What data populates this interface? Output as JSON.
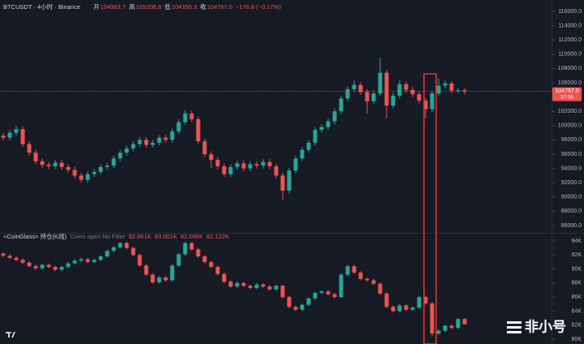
{
  "watermark": "非小号",
  "chart_data": [
    {
      "type": "candlestick",
      "title": "BTCUSDT · 4小时 · Binance",
      "stats": [
        {
          "label": "开",
          "value": "104963.7"
        },
        {
          "label": "高",
          "value": "105208.8"
        },
        {
          "label": "低",
          "value": "104356.3"
        },
        {
          "label": "收",
          "value": "104787.0"
        }
      ],
      "change": "−176.8 (−0.17%)",
      "open": [
        98600,
        98300,
        99000,
        99500,
        97400,
        96200,
        95000,
        94500,
        94300,
        94800,
        94200,
        93800,
        93000,
        92400,
        93200,
        93500,
        94200,
        94400,
        95400,
        96200,
        96800,
        97400,
        98000,
        97300,
        97600,
        98300,
        98000,
        99200,
        100500,
        101700,
        100900,
        97800,
        96000,
        95200,
        94300,
        93200,
        94200,
        94700,
        94000,
        94600,
        94400,
        94900,
        94300,
        93000,
        90900,
        93700,
        95400,
        96600,
        97600,
        99400,
        99800,
        100600,
        102000,
        103800,
        105100,
        105700,
        104700,
        103400,
        104500,
        107400,
        102800,
        104200,
        105800,
        105000,
        104400,
        103500,
        102300,
        104500,
        105600,
        105900,
        104900,
        104963.7
      ],
      "high": [
        99000,
        99400,
        100000,
        99900,
        97800,
        96600,
        95400,
        94900,
        95200,
        95200,
        94600,
        94200,
        93400,
        93600,
        93900,
        94600,
        94800,
        95800,
        96600,
        97200,
        97800,
        98400,
        98400,
        98000,
        98700,
        98700,
        99600,
        100900,
        102200,
        102100,
        101300,
        98200,
        96400,
        95600,
        94700,
        94600,
        95100,
        95100,
        95000,
        95000,
        95300,
        95300,
        94700,
        93400,
        94100,
        95800,
        97000,
        98000,
        99800,
        100200,
        101000,
        102400,
        104200,
        105500,
        106300,
        106100,
        105100,
        105000,
        109500,
        107800,
        104600,
        106400,
        106200,
        105400,
        104800,
        103900,
        104900,
        106600,
        106300,
        106200,
        105300,
        105208.8
      ],
      "low": [
        97900,
        97900,
        98600,
        97000,
        95800,
        94600,
        94100,
        93900,
        93900,
        93800,
        93400,
        92600,
        92000,
        92000,
        92800,
        93100,
        93800,
        94000,
        95000,
        95800,
        96400,
        97000,
        96900,
        96900,
        97200,
        97600,
        97600,
        98800,
        100100,
        100500,
        97400,
        95600,
        94000,
        93900,
        92800,
        92800,
        93800,
        93600,
        93600,
        94000,
        94000,
        93900,
        92600,
        89600,
        90500,
        93300,
        95000,
        96200,
        97200,
        99000,
        99400,
        100200,
        101600,
        103400,
        104700,
        104300,
        101700,
        103000,
        104100,
        101000,
        102400,
        103800,
        104600,
        104000,
        103100,
        101000,
        101900,
        104100,
        105200,
        104500,
        104500,
        104356.3
      ],
      "close": [
        98300,
        99000,
        99500,
        97400,
        96200,
        95000,
        94500,
        94300,
        94800,
        94200,
        93800,
        93000,
        92400,
        93200,
        93500,
        94200,
        94400,
        95400,
        96200,
        96800,
        97400,
        98000,
        97300,
        97600,
        98300,
        98000,
        99200,
        100500,
        101700,
        100900,
        97800,
        96000,
        95200,
        94300,
        93200,
        94200,
        94700,
        94000,
        94600,
        94400,
        94900,
        94300,
        93000,
        90900,
        93700,
        95400,
        96600,
        97600,
        99400,
        99800,
        100600,
        102000,
        103800,
        105100,
        105700,
        104700,
        103400,
        104500,
        107400,
        102800,
        104200,
        105800,
        105000,
        104400,
        103500,
        102300,
        104500,
        105600,
        105900,
        104900,
        104963.7,
        104787
      ],
      "ylim": [
        85000,
        117000
      ],
      "yticks": [
        {
          "value": 86000,
          "label": "86000.0"
        },
        {
          "value": 88000,
          "label": "88000.0"
        },
        {
          "value": 90000,
          "label": "90000.0"
        },
        {
          "value": 92000,
          "label": "92000.0"
        },
        {
          "value": 94000,
          "label": "94000.0"
        },
        {
          "value": 96000,
          "label": "96000.0"
        },
        {
          "value": 98000,
          "label": "98000.0"
        },
        {
          "value": 100000,
          "label": "100000.0"
        },
        {
          "value": 102000,
          "label": "102000.0"
        },
        {
          "value": 104000,
          "label": "104000.0"
        },
        {
          "value": 106000,
          "label": "106000.0"
        },
        {
          "value": 108000,
          "label": "108000.0"
        },
        {
          "value": 110000,
          "label": "110000.0"
        },
        {
          "value": 112000,
          "label": "112000.0"
        },
        {
          "value": 114000,
          "label": "114000.0"
        },
        {
          "value": 116000,
          "label": "116000.0"
        }
      ],
      "last_price": {
        "value": 104787,
        "label": "104787.0"
      },
      "countdown": "37:55",
      "up_color": "#26a69a",
      "down_color": "#ef5350"
    },
    {
      "type": "candlestick",
      "title": "<CoinGlass> 持仓(K线)",
      "subtitle": "Coins open No Filter",
      "stats": [
        "82.861K",
        "83.001K",
        "82.086K",
        "82.122K"
      ],
      "open": [
        92.2,
        91.9,
        91.6,
        91.3,
        90.9,
        90.4,
        90.1,
        90.6,
        90.3,
        89.9,
        90.3,
        90.8,
        91.2,
        91.4,
        91.0,
        91.3,
        91.8,
        92.6,
        93.1,
        93.7,
        93.0,
        92.0,
        90.5,
        89.2,
        88.1,
        88.8,
        88.4,
        90.5,
        92.1,
        93.7,
        92.8,
        91.8,
        91.0,
        90.3,
        89.3,
        88.2,
        87.5,
        88.0,
        87.6,
        87.3,
        87.8,
        87.5,
        87.1,
        87.6,
        86.0,
        84.6,
        84.2,
        84.9,
        85.8,
        86.6,
        86.8,
        86.4,
        86.0,
        89.2,
        90.4,
        89.5,
        88.6,
        88.4,
        87.9,
        86.5,
        84.6,
        84.0,
        84.8,
        84.2,
        84.5,
        86.0,
        85.1,
        80.8,
        81.2,
        81.9,
        81.6,
        82.861
      ],
      "high": [
        92.4,
        92.1,
        91.8,
        91.5,
        91.1,
        90.6,
        90.8,
        90.8,
        90.5,
        90.5,
        91.0,
        91.4,
        91.6,
        91.6,
        91.5,
        92.0,
        92.8,
        93.3,
        93.9,
        93.9,
        93.2,
        92.2,
        90.7,
        89.4,
        89.0,
        89.0,
        90.7,
        92.3,
        93.9,
        93.9,
        93.0,
        92.0,
        91.2,
        90.5,
        89.5,
        88.4,
        88.2,
        88.2,
        87.8,
        88.0,
        88.0,
        87.7,
        87.8,
        87.8,
        86.2,
        84.8,
        85.1,
        86.0,
        86.8,
        87.0,
        87.0,
        86.6,
        89.4,
        90.6,
        90.6,
        89.7,
        88.8,
        88.6,
        88.1,
        86.7,
        84.8,
        85.0,
        85.0,
        84.7,
        86.2,
        86.2,
        85.3,
        81.4,
        82.1,
        82.1,
        83.0,
        83.001
      ],
      "low": [
        91.7,
        91.4,
        91.1,
        90.7,
        90.2,
        89.9,
        89.9,
        90.1,
        89.7,
        89.7,
        90.1,
        90.6,
        91.0,
        90.8,
        90.8,
        91.1,
        91.6,
        92.4,
        92.9,
        92.8,
        91.8,
        90.3,
        89.0,
        87.9,
        87.9,
        88.2,
        88.2,
        90.3,
        91.9,
        92.6,
        91.6,
        90.8,
        90.1,
        89.1,
        88.0,
        87.3,
        87.3,
        87.4,
        87.1,
        87.1,
        87.3,
        86.9,
        86.9,
        85.8,
        84.4,
        84.0,
        84.0,
        84.7,
        85.6,
        86.4,
        86.2,
        85.8,
        85.8,
        89.0,
        89.3,
        88.4,
        88.2,
        87.7,
        86.3,
        84.4,
        83.8,
        83.8,
        84.0,
        84.0,
        84.3,
        84.9,
        80.4,
        80.6,
        81.0,
        81.4,
        81.4,
        82.086
      ],
      "close": [
        91.9,
        91.6,
        91.3,
        90.9,
        90.4,
        90.1,
        90.6,
        90.3,
        89.9,
        90.3,
        90.8,
        91.2,
        91.4,
        91.0,
        91.3,
        91.8,
        92.6,
        93.1,
        93.7,
        93.0,
        92.0,
        90.5,
        89.2,
        88.1,
        88.8,
        88.4,
        90.5,
        92.1,
        93.7,
        92.8,
        91.8,
        91.0,
        90.3,
        89.3,
        88.2,
        87.5,
        88.0,
        87.6,
        87.3,
        87.8,
        87.5,
        87.1,
        87.6,
        86.0,
        84.6,
        84.2,
        84.9,
        85.8,
        86.6,
        86.8,
        86.4,
        86.0,
        89.2,
        90.4,
        89.5,
        88.6,
        88.4,
        87.9,
        86.5,
        84.6,
        84.0,
        84.8,
        84.2,
        84.5,
        86.0,
        85.1,
        80.8,
        81.2,
        81.9,
        81.6,
        82.861,
        82.122
      ],
      "ylim": [
        79.5,
        95
      ],
      "yticks": [
        {
          "value": 80,
          "label": "80K"
        },
        {
          "value": 82,
          "label": "82K"
        },
        {
          "value": 84,
          "label": "84K"
        },
        {
          "value": 86,
          "label": "86K"
        },
        {
          "value": 88,
          "label": "88K"
        },
        {
          "value": 90,
          "label": "90K"
        },
        {
          "value": 92,
          "label": "92K"
        },
        {
          "value": 94,
          "label": "94K"
        }
      ],
      "up_color": "#26a69a",
      "down_color": "#ef5350"
    }
  ]
}
